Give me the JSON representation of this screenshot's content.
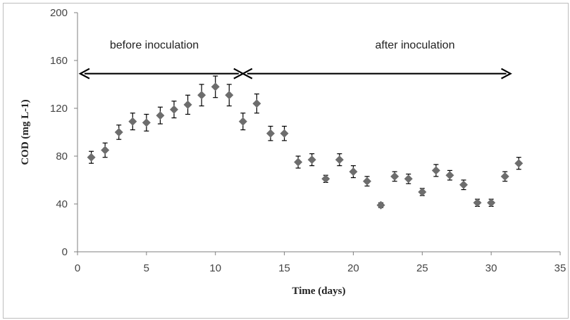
{
  "chart_data": {
    "type": "scatter",
    "title": "",
    "xlabel": "Time (days)",
    "ylabel": "COD (mg L-1)",
    "xlim": [
      0,
      35
    ],
    "ylim": [
      0,
      200
    ],
    "x_ticks": [
      0,
      5,
      10,
      15,
      20,
      25,
      30,
      35
    ],
    "y_ticks": [
      0,
      40,
      80,
      120,
      160,
      200
    ],
    "grid": false,
    "legend": "none",
    "marker_color": "#6d6d6d",
    "series": [
      {
        "x": [
          1,
          2,
          3,
          4,
          5,
          6,
          7,
          8,
          9,
          10,
          11,
          12,
          13,
          14,
          15,
          16,
          17,
          18,
          19,
          20,
          21,
          22,
          23,
          24,
          25,
          26,
          27,
          28,
          29,
          30,
          31,
          32
        ],
        "y": [
          79,
          85,
          100,
          109,
          108,
          114,
          119,
          123,
          131,
          138,
          131,
          109,
          124,
          99,
          99,
          75,
          77,
          61,
          77,
          67,
          59,
          39,
          63,
          61,
          50,
          68,
          64,
          56,
          41,
          41,
          63,
          74
        ],
        "error": [
          5,
          6,
          6,
          7,
          7,
          7,
          7,
          8,
          9,
          9,
          9,
          7,
          8,
          6,
          6,
          5,
          5,
          3,
          5,
          5,
          4,
          2,
          4,
          4,
          3,
          5,
          4,
          4,
          3,
          3,
          4,
          5
        ]
      }
    ],
    "annotations": [
      {
        "text": "before inoculation",
        "arrow_from_x": 0.2,
        "arrow_to_x": 12,
        "arrow_y": 149
      },
      {
        "text": "after inoculation",
        "arrow_from_x": 12,
        "arrow_to_x": 31.4,
        "arrow_y": 149
      }
    ]
  }
}
